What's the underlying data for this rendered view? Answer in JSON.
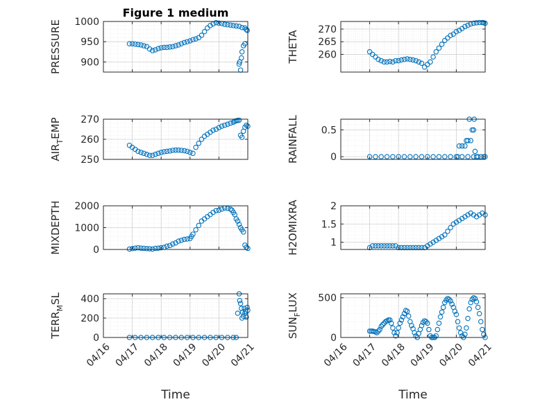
{
  "figure": {
    "title": "Figure 1 medium",
    "marker_color": "#0072BD",
    "grid": "on (major and minor, dotted)",
    "x_tick_labels": [
      "04/16",
      "04/17",
      "04/18",
      "04/19",
      "04/20",
      "04/21"
    ],
    "x_label": "Time"
  },
  "chart_data": [
    {
      "type": "scatter",
      "title": "Figure 1 medium",
      "ylabel": "PRESSURE",
      "xlim": [
        0,
        5
      ],
      "ylim": [
        875,
        1000
      ],
      "yticks": [
        900,
        950,
        1000
      ],
      "x": [
        0.9,
        1.0,
        1.1,
        1.2,
        1.3,
        1.4,
        1.5,
        1.6,
        1.7,
        1.8,
        1.9,
        2.0,
        2.1,
        2.2,
        2.3,
        2.4,
        2.5,
        2.6,
        2.7,
        2.8,
        2.9,
        3.0,
        3.1,
        3.2,
        3.3,
        3.4,
        3.5,
        3.6,
        3.7,
        3.8,
        3.9,
        4.0,
        4.1,
        4.2,
        4.3,
        4.4,
        4.5,
        4.6,
        4.7,
        4.8,
        4.9,
        4.95,
        4.98,
        4.7,
        4.72,
        4.75,
        4.78,
        4.8,
        4.85,
        4.9
      ],
      "y": [
        945,
        945,
        944,
        943,
        942,
        940,
        938,
        932,
        928,
        930,
        933,
        935,
        936,
        936,
        937,
        938,
        940,
        942,
        945,
        948,
        950,
        952,
        955,
        957,
        960,
        966,
        975,
        984,
        990,
        994,
        997,
        996,
        995,
        993,
        992,
        991,
        990,
        989,
        988,
        985,
        984,
        980,
        978,
        895,
        900,
        880,
        910,
        925,
        940,
        945
      ]
    },
    {
      "type": "scatter",
      "ylabel": "THETA",
      "xlim": [
        0,
        5
      ],
      "ylim": [
        253,
        273
      ],
      "yticks": [
        260,
        265,
        270
      ],
      "x": [
        1.0,
        1.1,
        1.2,
        1.3,
        1.4,
        1.5,
        1.6,
        1.7,
        1.8,
        1.9,
        2.0,
        2.1,
        2.2,
        2.3,
        2.4,
        2.5,
        2.6,
        2.7,
        2.8,
        2.9,
        3.0,
        3.1,
        3.2,
        3.3,
        3.4,
        3.5,
        3.6,
        3.7,
        3.8,
        3.9,
        4.0,
        4.1,
        4.2,
        4.3,
        4.4,
        4.5,
        4.6,
        4.7,
        4.8,
        4.9,
        4.95,
        5.0
      ],
      "y": [
        261,
        260,
        259,
        258,
        257.5,
        257,
        257,
        257.2,
        257,
        257.5,
        257.5,
        257.8,
        258,
        258.2,
        258,
        257.8,
        257.5,
        257,
        256.5,
        255,
        256,
        257,
        259,
        261,
        262.5,
        264,
        265.5,
        266.5,
        267.5,
        268,
        269,
        269.5,
        270.2,
        271,
        271.5,
        272,
        272.3,
        272.5,
        272.6,
        272.6,
        272.5,
        272.3
      ]
    },
    {
      "type": "scatter",
      "ylabel": "AIR_TEMP",
      "xlim": [
        0,
        5
      ],
      "ylim": [
        250,
        270
      ],
      "yticks": [
        250,
        260,
        270
      ],
      "x": [
        0.9,
        1.0,
        1.1,
        1.2,
        1.3,
        1.4,
        1.5,
        1.6,
        1.7,
        1.8,
        1.9,
        2.0,
        2.1,
        2.2,
        2.3,
        2.4,
        2.5,
        2.6,
        2.7,
        2.8,
        2.9,
        3.0,
        3.1,
        3.2,
        3.3,
        3.4,
        3.5,
        3.6,
        3.7,
        3.8,
        3.9,
        4.0,
        4.1,
        4.2,
        4.3,
        4.4,
        4.5,
        4.55,
        4.6,
        4.65,
        4.7,
        4.75,
        4.8,
        4.85,
        4.9,
        4.95,
        5.0
      ],
      "y": [
        257,
        256,
        255,
        254,
        253.5,
        253,
        252.5,
        252,
        252,
        252.5,
        253,
        253.5,
        253.8,
        254,
        254.2,
        254.5,
        254.6,
        254.6,
        254.5,
        254.3,
        254,
        253.5,
        253,
        256,
        258,
        260,
        261.5,
        262.5,
        263.5,
        264.5,
        265,
        265.8,
        266.5,
        267,
        267.5,
        268,
        268.5,
        269,
        269.2,
        269.4,
        269.5,
        262,
        261,
        264,
        266,
        267,
        266.5
      ]
    },
    {
      "type": "scatter",
      "ylabel": "RAINFALL",
      "xlim": [
        0,
        5
      ],
      "ylim": [
        -0.05,
        0.7
      ],
      "yticks": [
        0,
        0.5
      ],
      "x": [
        1.0,
        1.2,
        1.4,
        1.6,
        1.8,
        2.0,
        2.2,
        2.4,
        2.6,
        2.8,
        3.0,
        3.2,
        3.4,
        3.6,
        3.8,
        4.0,
        4.2,
        4.4,
        4.6,
        4.75,
        4.85,
        4.95,
        5.0,
        4.05,
        4.1,
        4.2,
        4.3,
        4.35,
        4.4,
        4.45,
        4.5,
        4.55,
        4.6,
        4.62,
        4.65,
        4.7
      ],
      "y": [
        0,
        0,
        0,
        0,
        0,
        0,
        0,
        0,
        0,
        0,
        0,
        0,
        0,
        0,
        0,
        0,
        0,
        0,
        0,
        0,
        0,
        0,
        0,
        0,
        0.2,
        0.2,
        0.2,
        0.3,
        0.3,
        0.7,
        0.3,
        0.5,
        0.5,
        0.7,
        0.1,
        0.0
      ]
    },
    {
      "type": "scatter",
      "ylabel": "MIXDEPTH",
      "xlim": [
        0,
        5
      ],
      "ylim": [
        0,
        2000
      ],
      "yticks": [
        0,
        1000,
        2000
      ],
      "x": [
        0.9,
        1.0,
        1.1,
        1.2,
        1.3,
        1.4,
        1.5,
        1.6,
        1.7,
        1.8,
        1.9,
        2.0,
        2.1,
        2.2,
        2.3,
        2.4,
        2.5,
        2.6,
        2.7,
        2.8,
        2.9,
        3.0,
        3.05,
        3.1,
        3.2,
        3.3,
        3.4,
        3.5,
        3.6,
        3.7,
        3.8,
        3.9,
        4.0,
        4.1,
        4.2,
        4.3,
        4.4,
        4.45,
        4.5,
        4.55,
        4.6,
        4.65,
        4.7,
        4.75,
        4.8,
        4.85,
        4.9,
        4.95,
        5.0
      ],
      "y": [
        20,
        40,
        60,
        80,
        60,
        50,
        40,
        30,
        20,
        50,
        60,
        80,
        100,
        150,
        180,
        250,
        300,
        380,
        420,
        460,
        480,
        500,
        600,
        700,
        900,
        1100,
        1300,
        1400,
        1500,
        1600,
        1700,
        1780,
        1800,
        1850,
        1900,
        1880,
        1850,
        1800,
        1700,
        1600,
        1400,
        1300,
        1150,
        1000,
        900,
        800,
        200,
        100,
        50
      ]
    },
    {
      "type": "scatter",
      "ylabel": "H2OMIXRA",
      "xlim": [
        0,
        5
      ],
      "ylim": [
        0.8,
        2
      ],
      "yticks": [
        1,
        1.5,
        2
      ],
      "x": [
        1.0,
        1.1,
        1.2,
        1.3,
        1.4,
        1.5,
        1.6,
        1.7,
        1.8,
        1.9,
        2.0,
        2.1,
        2.2,
        2.3,
        2.4,
        2.5,
        2.6,
        2.7,
        2.8,
        2.9,
        3.0,
        3.1,
        3.2,
        3.3,
        3.4,
        3.5,
        3.6,
        3.7,
        3.8,
        3.9,
        4.0,
        4.1,
        4.2,
        4.3,
        4.4,
        4.5,
        4.6,
        4.7,
        4.8,
        4.9,
        5.0
      ],
      "y": [
        0.85,
        0.9,
        0.9,
        0.9,
        0.9,
        0.9,
        0.9,
        0.9,
        0.9,
        0.9,
        0.85,
        0.85,
        0.85,
        0.85,
        0.85,
        0.85,
        0.85,
        0.85,
        0.85,
        0.85,
        0.9,
        0.95,
        1.0,
        1.05,
        1.1,
        1.15,
        1.2,
        1.3,
        1.4,
        1.5,
        1.55,
        1.6,
        1.65,
        1.7,
        1.75,
        1.8,
        1.75,
        1.7,
        1.75,
        1.8,
        1.75
      ]
    },
    {
      "type": "scatter",
      "ylabel": "TERR_MSL",
      "xlim": [
        0,
        5
      ],
      "ylim": [
        0,
        450
      ],
      "yticks": [
        0,
        200,
        400
      ],
      "x": [
        0.9,
        1.1,
        1.3,
        1.5,
        1.7,
        1.9,
        2.1,
        2.3,
        2.5,
        2.7,
        2.9,
        3.1,
        3.3,
        3.5,
        3.7,
        3.9,
        4.1,
        4.3,
        4.5,
        4.6,
        4.65,
        4.7,
        4.72,
        4.75,
        4.78,
        4.8,
        4.82,
        4.85,
        4.88,
        4.9,
        4.92,
        4.95,
        4.98,
        5.0
      ],
      "y": [
        0,
        0,
        0,
        0,
        0,
        0,
        0,
        0,
        0,
        0,
        0,
        0,
        0,
        0,
        0,
        0,
        0,
        0,
        0,
        0,
        250,
        450,
        380,
        350,
        300,
        200,
        260,
        220,
        300,
        250,
        270,
        210,
        310,
        280
      ]
    },
    {
      "type": "scatter",
      "ylabel": "SUN_FLUX",
      "xlim": [
        0,
        5
      ],
      "ylim": [
        0,
        550
      ],
      "yticks": [
        0,
        500
      ],
      "x": [
        1.0,
        1.05,
        1.1,
        1.15,
        1.2,
        1.25,
        1.3,
        1.35,
        1.4,
        1.45,
        1.5,
        1.55,
        1.6,
        1.65,
        1.7,
        1.75,
        1.8,
        1.85,
        1.9,
        1.95,
        2.0,
        2.05,
        2.1,
        2.15,
        2.2,
        2.25,
        2.3,
        2.35,
        2.4,
        2.45,
        2.5,
        2.55,
        2.6,
        2.65,
        2.7,
        2.75,
        2.8,
        2.85,
        2.9,
        2.95,
        3.0,
        3.05,
        3.1,
        3.15,
        3.2,
        3.25,
        3.3,
        3.35,
        3.4,
        3.45,
        3.5,
        3.55,
        3.6,
        3.65,
        3.7,
        3.75,
        3.8,
        3.85,
        3.9,
        3.95,
        4.0,
        4.05,
        4.1,
        4.15,
        4.2,
        4.25,
        4.3,
        4.35,
        4.4,
        4.45,
        4.5,
        4.55,
        4.6,
        4.65,
        4.7,
        4.75,
        4.8,
        4.85,
        4.9,
        4.95,
        5.0
      ],
      "y": [
        80,
        80,
        80,
        75,
        70,
        60,
        80,
        100,
        140,
        160,
        180,
        200,
        210,
        220,
        220,
        180,
        120,
        60,
        20,
        60,
        120,
        180,
        220,
        260,
        300,
        340,
        330,
        270,
        200,
        150,
        110,
        60,
        20,
        0,
        50,
        100,
        150,
        190,
        210,
        200,
        180,
        100,
        20,
        0,
        0,
        0,
        20,
        100,
        180,
        260,
        320,
        380,
        440,
        470,
        490,
        480,
        460,
        420,
        380,
        330,
        290,
        200,
        120,
        60,
        20,
        0,
        40,
        120,
        240,
        360,
        440,
        480,
        500,
        490,
        450,
        380,
        300,
        200,
        100,
        40,
        0
      ]
    }
  ]
}
